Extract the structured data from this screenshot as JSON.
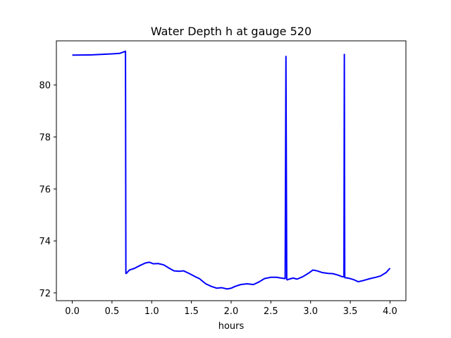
{
  "chart_data": {
    "type": "line",
    "title": "Water Depth h at gauge 520",
    "xlabel": "hours",
    "ylabel": "",
    "xlim": [
      -0.2,
      4.2
    ],
    "ylim": [
      71.7,
      81.7
    ],
    "grid": false,
    "xticks": [
      0.0,
      0.5,
      1.0,
      1.5,
      2.0,
      2.5,
      3.0,
      3.5,
      4.0
    ],
    "xtick_labels": [
      "0.0",
      "0.5",
      "1.0",
      "1.5",
      "2.0",
      "2.5",
      "3.0",
      "3.5",
      "4.0"
    ],
    "yticks": [
      72,
      74,
      76,
      78,
      80
    ],
    "ytick_labels": [
      "72",
      "74",
      "76",
      "78",
      "80"
    ],
    "series": [
      {
        "color": "#0000ff",
        "x": [
          0.0,
          0.25,
          0.5,
          0.6,
          0.67,
          0.675,
          0.68,
          0.72,
          0.78,
          0.85,
          0.92,
          0.97,
          1.02,
          1.08,
          1.15,
          1.22,
          1.28,
          1.35,
          1.4,
          1.47,
          1.55,
          1.6,
          1.68,
          1.75,
          1.82,
          1.88,
          1.95,
          2.0,
          2.05,
          2.12,
          2.2,
          2.28,
          2.35,
          2.42,
          2.5,
          2.57,
          2.63,
          2.68,
          2.69,
          2.7,
          2.705,
          2.72,
          2.78,
          2.83,
          2.9,
          2.97,
          3.03,
          3.08,
          3.15,
          3.22,
          3.28,
          3.35,
          3.4,
          3.42,
          3.425,
          3.43,
          3.435,
          3.45,
          3.5,
          3.55,
          3.6,
          3.67,
          3.75,
          3.82,
          3.88,
          3.95,
          4.0
        ],
        "y": [
          81.15,
          81.16,
          81.2,
          81.22,
          81.3,
          72.75,
          72.75,
          72.88,
          72.94,
          73.05,
          73.15,
          73.18,
          73.12,
          73.13,
          73.08,
          72.95,
          72.85,
          72.83,
          72.85,
          72.75,
          72.62,
          72.55,
          72.35,
          72.25,
          72.18,
          72.2,
          72.15,
          72.18,
          72.25,
          72.32,
          72.35,
          72.32,
          72.42,
          72.55,
          72.6,
          72.6,
          72.57,
          72.55,
          81.1,
          72.53,
          72.5,
          72.52,
          72.57,
          72.53,
          72.62,
          72.75,
          72.88,
          72.85,
          72.78,
          72.75,
          72.74,
          72.68,
          72.62,
          72.62,
          81.18,
          72.6,
          72.58,
          72.58,
          72.55,
          72.5,
          72.43,
          72.48,
          72.55,
          72.6,
          72.65,
          72.78,
          72.95
        ]
      }
    ]
  }
}
